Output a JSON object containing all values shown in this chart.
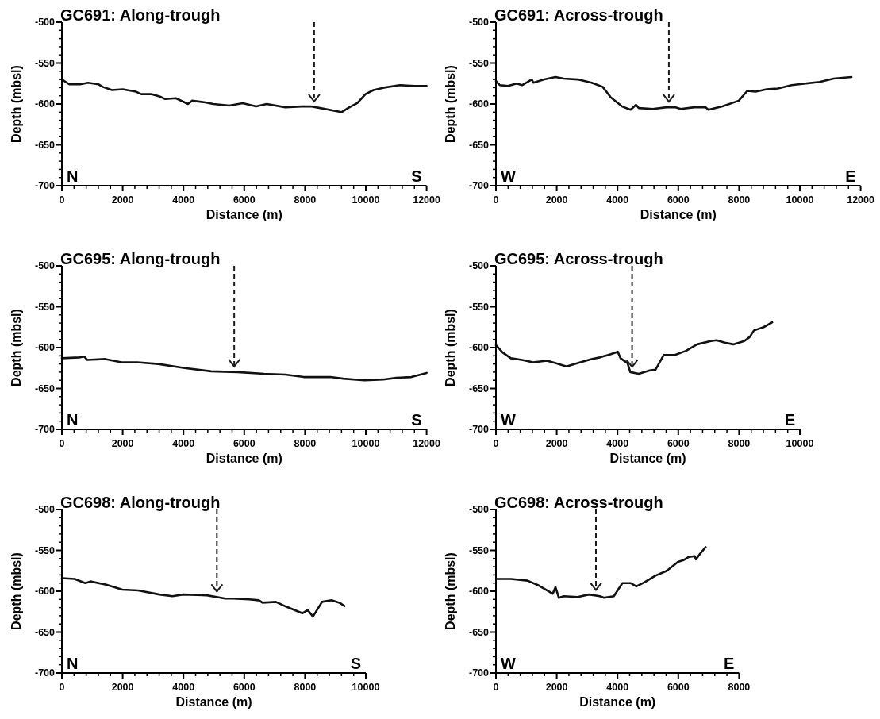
{
  "chart_data": [
    {
      "type": "line",
      "title": "GC691: Along-trough",
      "xlabel": "Distance (m)",
      "ylabel": "Depth (mbsl)",
      "annotations": [
        "N",
        "S"
      ],
      "xlim": [
        0,
        12000
      ],
      "xticks": [
        0,
        2000,
        4000,
        6000,
        8000,
        10000,
        12000
      ],
      "ylim": [
        -700,
        -500
      ],
      "yticks": [
        -700,
        -650,
        -600,
        -550,
        -500
      ],
      "ref_lines": [
        {
          "axis": "x",
          "value": 8300,
          "line_style": "dashed",
          "color": "#1a1a1a"
        }
      ],
      "series": [
        {
          "color": "#111111",
          "x": [
            0,
            245,
            600,
            860,
            1210,
            1340,
            1650,
            2000,
            2440,
            2610,
            2960,
            3230,
            3400,
            3750,
            4150,
            4280,
            4720,
            4980,
            5510,
            5950,
            6390,
            6740,
            7350,
            7880,
            8190,
            8500,
            9200,
            9460,
            9720,
            9990,
            10250,
            10600,
            11120,
            11600,
            12000
          ],
          "values": [
            -570,
            -576,
            -576,
            -574,
            -576,
            -579,
            -583,
            -582,
            -585,
            -588,
            -588,
            -591,
            -594,
            -593,
            -600,
            -596,
            -598,
            -600,
            -602,
            -599,
            -603,
            -600,
            -604,
            -603,
            -603,
            -605,
            -610,
            -604,
            -599,
            -588,
            -583,
            -580,
            -577,
            -578,
            -578
          ]
        }
      ]
    },
    {
      "type": "line",
      "title": "GC691: Across-trough",
      "xlabel": "Distance (m)",
      "ylabel": "Depth (mbsl)",
      "annotations": [
        "W",
        "E"
      ],
      "xlim": [
        0,
        12000
      ],
      "xticks": [
        0,
        2000,
        4000,
        6000,
        8000,
        10000,
        12000
      ],
      "ylim": [
        -700,
        -500
      ],
      "yticks": [
        -700,
        -650,
        -600,
        -550,
        -500
      ],
      "ref_lines": [
        {
          "axis": "x",
          "value": 5690,
          "line_style": "dashed",
          "color": "#1a1a1a"
        }
      ],
      "series": [
        {
          "color": "#111111",
          "x": [
            0,
            130,
            400,
            680,
            860,
            1180,
            1230,
            1590,
            1960,
            2230,
            2690,
            3150,
            3510,
            3780,
            4150,
            4430,
            4610,
            4700,
            5160,
            5620,
            5890,
            6080,
            6530,
            6900,
            6990,
            7450,
            7990,
            8270,
            8540,
            8910,
            9280,
            9730,
            10190,
            10650,
            11110,
            11700
          ],
          "values": [
            -572,
            -577,
            -578,
            -575,
            -577,
            -570,
            -574,
            -570,
            -567,
            -569,
            -570,
            -574,
            -579,
            -592,
            -603,
            -607,
            -601,
            -605,
            -606,
            -604,
            -604,
            -606,
            -604,
            -604,
            -607,
            -603,
            -596,
            -584,
            -585,
            -582,
            -581,
            -577,
            -575,
            -573,
            -569,
            -567
          ]
        }
      ]
    },
    {
      "type": "line",
      "title": "GC695: Along-trough",
      "xlabel": "Distance (m)",
      "ylabel": "Depth (mbsl)",
      "annotations": [
        "N",
        "S"
      ],
      "xlim": [
        0,
        12000
      ],
      "xticks": [
        0,
        2000,
        4000,
        6000,
        8000,
        10000,
        12000
      ],
      "ylim": [
        -700,
        -500
      ],
      "yticks": [
        -700,
        -650,
        -600,
        -550,
        -500
      ],
      "ref_lines": [
        {
          "axis": "x",
          "value": 5670,
          "line_style": "dashed",
          "color": "#1a1a1a"
        }
      ],
      "series": [
        {
          "color": "#111111",
          "x": [
            0,
            565,
            740,
            830,
            1430,
            1960,
            2480,
            3170,
            4040,
            4910,
            5780,
            6650,
            7350,
            7960,
            8830,
            9260,
            9960,
            10570,
            11000,
            11500,
            12000
          ],
          "values": [
            -613,
            -612,
            -611,
            -615,
            -614,
            -618,
            -618,
            -620,
            -625,
            -629,
            -630,
            -632,
            -633,
            -636,
            -636,
            -638,
            -640,
            -639,
            -637,
            -636,
            -631
          ]
        }
      ]
    },
    {
      "type": "line",
      "title": "GC695: Across-trough",
      "xlabel": "Distance (m)",
      "ylabel": "Depth (mbsl)",
      "annotations": [
        "W",
        "E"
      ],
      "xlim": [
        0,
        10000
      ],
      "xticks": [
        0,
        2000,
        4000,
        6000,
        8000,
        10000
      ],
      "ylim": [
        -700,
        -500
      ],
      "yticks": [
        -700,
        -650,
        -600,
        -550,
        -500
      ],
      "ref_lines": [
        {
          "axis": "x",
          "value": 4480,
          "line_style": "dashed",
          "color": "#1a1a1a"
        }
      ],
      "series": [
        {
          "color": "#111111",
          "x": [
            0,
            220,
            490,
            860,
            1220,
            1680,
            1960,
            2320,
            2690,
            3140,
            3420,
            3780,
            4010,
            4100,
            4330,
            4420,
            4700,
            5060,
            5250,
            5520,
            5890,
            6250,
            6620,
            7070,
            7260,
            7530,
            7810,
            8170,
            8350,
            8490,
            8810,
            9090
          ],
          "values": [
            -597,
            -606,
            -613,
            -615,
            -618,
            -616,
            -619,
            -623,
            -619,
            -614,
            -612,
            -608,
            -605,
            -613,
            -619,
            -630,
            -632,
            -628,
            -627,
            -609,
            -609,
            -604,
            -596,
            -592,
            -591,
            -594,
            -596,
            -592,
            -587,
            -579,
            -575,
            -569
          ]
        }
      ]
    },
    {
      "type": "line",
      "title": "GC698: Along-trough",
      "xlabel": "Distance (m)",
      "ylabel": "Depth (mbsl)",
      "annotations": [
        "N",
        "S"
      ],
      "xlim": [
        0,
        10000
      ],
      "xticks": [
        0,
        2000,
        4000,
        6000,
        8000,
        10000
      ],
      "ylim": [
        -700,
        -500
      ],
      "yticks": [
        -700,
        -650,
        -600,
        -550,
        -500
      ],
      "ref_lines": [
        {
          "axis": "x",
          "value": 5100,
          "line_style": "dashed",
          "color": "#1a1a1a"
        }
      ],
      "series": [
        {
          "color": "#111111",
          "x": [
            0,
            420,
            770,
            940,
            1460,
            1990,
            2510,
            3210,
            3640,
            3990,
            4770,
            5380,
            5640,
            6160,
            6480,
            6600,
            7040,
            7390,
            7910,
            8090,
            8260,
            8560,
            8870,
            9130,
            9300
          ],
          "values": [
            -584,
            -585,
            -590,
            -588,
            -592,
            -598,
            -599,
            -604,
            -606,
            -604,
            -605,
            -609,
            -609,
            -610,
            -611,
            -614,
            -613,
            -619,
            -627,
            -623,
            -631,
            -613,
            -611,
            -614,
            -618
          ]
        }
      ]
    },
    {
      "type": "line",
      "title": "GC698: Across-trough",
      "xlabel": "Distance (m)",
      "ylabel": "Depth (mbsl)",
      "annotations": [
        "W",
        "E"
      ],
      "xlim": [
        0,
        8000
      ],
      "xticks": [
        0,
        2000,
        4000,
        6000,
        8000
      ],
      "ylim": [
        -700,
        -500
      ],
      "yticks": [
        -700,
        -650,
        -600,
        -550,
        -500
      ],
      "ref_lines": [
        {
          "axis": "x",
          "value": 3290,
          "line_style": "dashed",
          "color": "#1a1a1a"
        }
      ],
      "series": [
        {
          "color": "#111111",
          "x": [
            0,
            490,
            1040,
            1410,
            1870,
            1960,
            2070,
            2230,
            2690,
            3060,
            3420,
            3560,
            3880,
            4160,
            4430,
            4620,
            4890,
            5250,
            5620,
            5990,
            6170,
            6350,
            6540,
            6580,
            6720,
            6900
          ],
          "values": [
            -585,
            -585,
            -587,
            -593,
            -603,
            -595,
            -608,
            -606,
            -607,
            -604,
            -606,
            -608,
            -606,
            -590,
            -590,
            -594,
            -589,
            -581,
            -575,
            -564,
            -562,
            -558,
            -557,
            -561,
            -554,
            -546
          ]
        }
      ]
    }
  ]
}
